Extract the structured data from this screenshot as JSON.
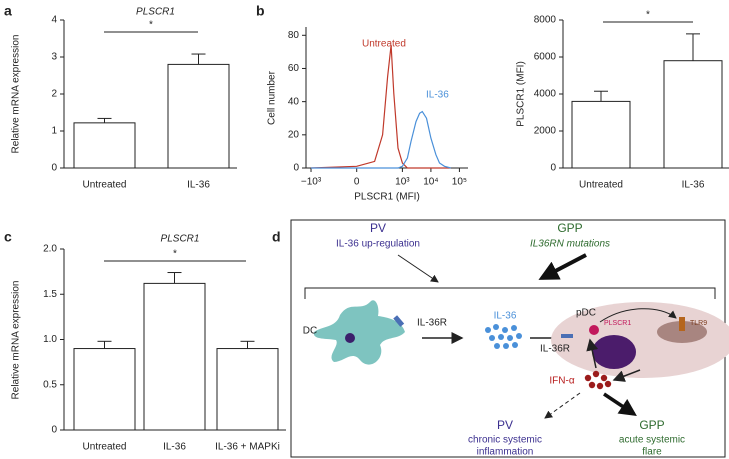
{
  "panel_labels": [
    "a",
    "b",
    "c",
    "d"
  ],
  "chart_data": [
    {
      "type": "bar",
      "title": "PLSCR1",
      "y_label": "Relative mRNA expression",
      "categories": [
        "Untreated",
        "IL-36"
      ],
      "values": [
        1.22,
        2.8
      ],
      "errors": [
        0.12,
        0.28
      ],
      "color": "#ffffff",
      "ylim": [
        0,
        4
      ],
      "yticks": [
        0,
        1,
        2,
        3,
        4
      ],
      "annotation": "*"
    },
    {
      "type": "line",
      "x_label": "PLSCR1 (MFI)",
      "y_label": "Cell number",
      "xscale": "biexponential",
      "x": [
        -1000,
        0,
        100,
        200,
        300,
        400,
        500,
        700,
        1000,
        1500,
        2000,
        3000,
        4000,
        5000,
        7000,
        10000,
        15000,
        20000,
        30000,
        50000
      ],
      "series": [
        {
          "name": "Untreated",
          "color": "#c0392b",
          "values": [
            0,
            1,
            4,
            20,
            55,
            74,
            45,
            12,
            3,
            0,
            0,
            0,
            0,
            0,
            0,
            0,
            0,
            0,
            0,
            0
          ]
        },
        {
          "name": "IL-36",
          "color": "#4a90d9",
          "values": [
            0,
            0,
            0,
            0,
            0,
            0,
            0,
            0,
            1,
            6,
            16,
            28,
            33,
            34,
            30,
            18,
            8,
            3,
            1,
            0
          ]
        }
      ],
      "xlim": [
        -1500,
        200000
      ],
      "xticks": [
        {
          "value": -1000,
          "label": "−10³"
        },
        0,
        {
          "value": 1000,
          "label": "10³"
        },
        {
          "value": 10000,
          "label": "10⁴"
        },
        {
          "value": 100000,
          "label": "10⁵"
        }
      ],
      "ylim": [
        0,
        85
      ],
      "yticks": [
        0,
        20,
        40,
        60,
        80
      ]
    },
    {
      "type": "bar",
      "y_label": "PLSCR1 (MFI)",
      "categories": [
        "Untreated",
        "IL-36"
      ],
      "values": [
        3600,
        5800
      ],
      "errors": [
        550,
        1450
      ],
      "color": "#ffffff",
      "ylim": [
        0,
        8000
      ],
      "yticks": [
        0,
        2000,
        4000,
        6000,
        8000
      ],
      "annotation": "*"
    },
    {
      "type": "bar",
      "title": "PLSCR1",
      "y_label": "Relative mRNA expression",
      "categories": [
        "Untreated",
        "IL-36",
        "IL-36 + MAPKi"
      ],
      "values": [
        0.9,
        1.62,
        0.9
      ],
      "errors": [
        0.08,
        0.12,
        0.08
      ],
      "color": "#ffffff",
      "ylim": [
        0,
        2
      ],
      "yticks": [
        0,
        0.5,
        {
          "value": 1,
          "label": "1.0"
        },
        1.5,
        {
          "value": 2,
          "label": "2.0"
        }
      ],
      "annotation": "*"
    }
  ],
  "diagram": {
    "top_left": {
      "title": "PV",
      "subtitle": "IL-36 up-regulation"
    },
    "top_right": {
      "title": "GPP",
      "subtitle": "IL36RN mutations"
    },
    "dc_label": "DC",
    "receptor_label": "IL-36R",
    "cytokine_label": "IL-36",
    "pdc_label": "pDC",
    "pdc_receptor_label": "IL-36R",
    "plscr1_label": "PLSCR1",
    "tlr9_label": "TLR9",
    "ifn_label": "IFN-α",
    "outcome_left": {
      "title": "PV",
      "lines": [
        "chronic systemic",
        "inflammation"
      ]
    },
    "outcome_right": {
      "title": "GPP",
      "lines": [
        "acute systemic",
        "flare"
      ]
    }
  }
}
